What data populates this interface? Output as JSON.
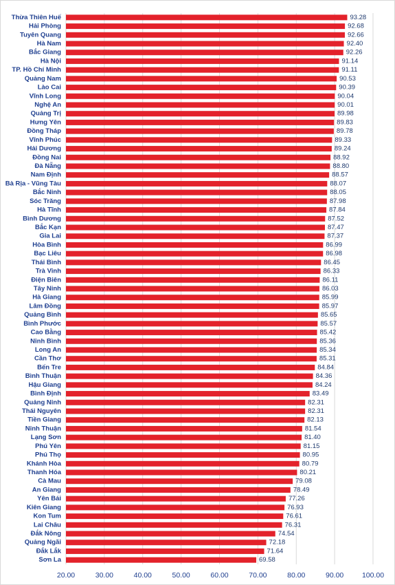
{
  "chart_data": {
    "type": "hbar",
    "color": "#e3222b",
    "grid": true,
    "categories": [
      "Thừa Thiên Huế",
      "Hải Phòng",
      "Tuyên Quang",
      "Hà Nam",
      "Bắc Giang",
      "Hà Nội",
      "TP. Hồ Chí Minh",
      "Quảng Nam",
      "Lào Cai",
      "Vĩnh Long",
      "Nghệ An",
      "Quảng Trị",
      "Hưng Yên",
      "Đồng Tháp",
      "Vĩnh Phúc",
      "Hải Dương",
      "Đồng Nai",
      "Đà Nẵng",
      "Nam Định",
      "Bà Rịa - Vũng Tàu",
      "Bắc Ninh",
      "Sóc Trăng",
      "Hà Tĩnh",
      "Bình Dương",
      "Bắc Kạn",
      "Gia Lai",
      "Hòa Bình",
      "Bạc Liêu",
      "Thái Bình",
      "Trà Vinh",
      "Điện Biên",
      "Tây Ninh",
      "Hà Giang",
      "Lâm Đồng",
      "Quảng Bình",
      "Bình Phước",
      "Cao Bằng",
      "Ninh Bình",
      "Long An",
      "Cần Thơ",
      "Bến Tre",
      "Bình Thuận",
      "Hậu Giang",
      "Bình Định",
      "Quảng Ninh",
      "Thái Nguyên",
      "Tiền Giang",
      "Ninh Thuận",
      "Lạng Sơn",
      "Phú Yên",
      "Phú Thọ",
      "Khánh Hòa",
      "Thanh Hóa",
      "Cà Mau",
      "An Giang",
      "Yên Bái",
      "Kiên Giang",
      "Kon Tum",
      "Lai Châu",
      "Đắk Nông",
      "Quảng Ngãi",
      "Đắk Lắk",
      "Sơn La"
    ],
    "values": [
      93.28,
      92.68,
      92.66,
      92.4,
      92.26,
      91.14,
      91.11,
      90.53,
      90.39,
      90.04,
      90.01,
      89.98,
      89.83,
      89.78,
      89.33,
      89.24,
      88.92,
      88.8,
      88.57,
      88.07,
      88.05,
      87.98,
      87.84,
      87.52,
      87.47,
      87.37,
      86.99,
      86.98,
      86.45,
      86.33,
      86.11,
      86.03,
      85.99,
      85.97,
      85.65,
      85.57,
      85.42,
      85.36,
      85.34,
      85.31,
      84.84,
      84.36,
      84.24,
      83.49,
      82.31,
      82.31,
      82.13,
      81.54,
      81.4,
      81.15,
      80.95,
      80.79,
      80.21,
      79.08,
      78.49,
      77.26,
      76.93,
      76.61,
      76.31,
      74.54,
      72.18,
      71.64,
      69.58
    ],
    "value_labels": [
      "93.28",
      "92.68",
      "92.66",
      "92.40",
      "92.26",
      "91.14",
      "91.11",
      "90.53",
      "90.39",
      "90.04",
      "90.01",
      "89.98",
      "89.83",
      "89.78",
      "89.33",
      "89.24",
      "88.92",
      "88.80",
      "88.57",
      "88.07",
      "88.05",
      "87.98",
      "87.84",
      "87.52",
      "87.47",
      "87.37",
      "86.99",
      "86.98",
      "86.45",
      "86.33",
      "86.11",
      "86.03",
      "85.99",
      "85.97",
      "85.65",
      "85.57",
      "85.42",
      "85.36",
      "85.34",
      "85.31",
      "84.84",
      "84.36",
      "84.24",
      "83.49",
      "82.31",
      "82.31",
      "82.13",
      "81.54",
      "81.40",
      "81.15",
      "80.95",
      "80.79",
      "80.21",
      "79.08",
      "78.49",
      "77.26",
      "76.93",
      "76.61",
      "76.31",
      "74.54",
      "72.18",
      "71.64",
      "69.58"
    ],
    "xlim": [
      20,
      100
    ],
    "xticks": [
      {
        "value": 20,
        "label": "20.00"
      },
      {
        "value": 30,
        "label": "30.00"
      },
      {
        "value": 40,
        "label": "40.00"
      },
      {
        "value": 50,
        "label": "50.00"
      },
      {
        "value": 60,
        "label": "60.00"
      },
      {
        "value": 70,
        "label": "70.00"
      },
      {
        "value": 80,
        "label": "80.00"
      },
      {
        "value": 90,
        "label": "90.00"
      },
      {
        "value": 100,
        "label": "100.00"
      }
    ]
  }
}
